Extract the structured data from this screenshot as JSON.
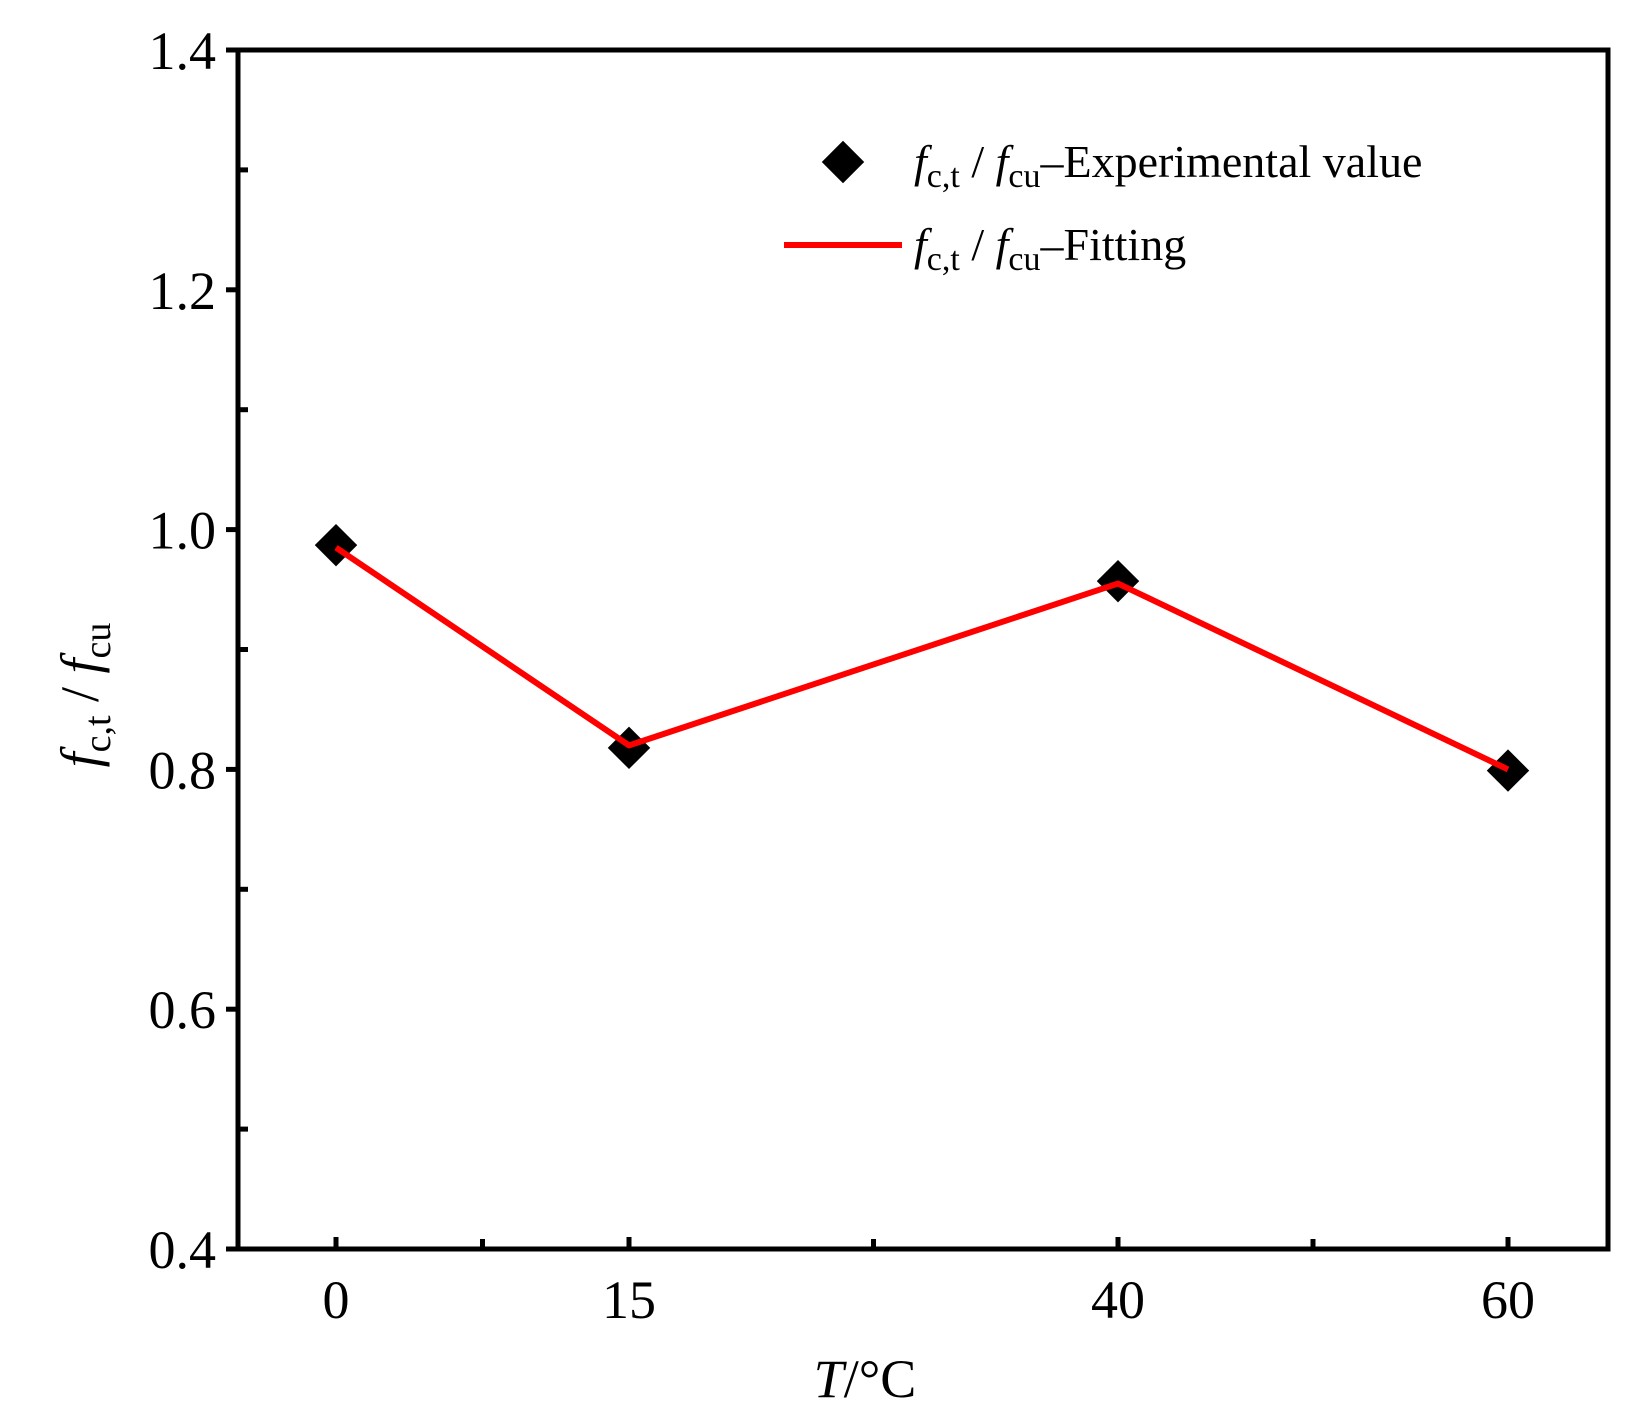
{
  "chart_data": {
    "type": "line",
    "x_categories": [
      "0",
      "15",
      "40",
      "60"
    ],
    "x": [
      0,
      15,
      40,
      60
    ],
    "ylim": [
      0.4,
      1.4
    ],
    "y_ticks": [
      "0.4",
      "0.6",
      "0.8",
      "1.0",
      "1.2",
      "1.4"
    ],
    "y_tick_values": [
      0.4,
      0.6,
      0.8,
      1.0,
      1.2,
      1.4
    ],
    "y_minor_tick_values": [
      0.5,
      0.7,
      0.9,
      1.1,
      1.3
    ],
    "x_minor_tick_positions": [
      0.5,
      1.5,
      2.5
    ],
    "xlabel": {
      "var": "T",
      "unit": "/°C"
    },
    "ylabel": {
      "f1": "f",
      "sub1": "c,t",
      "slash": " / ",
      "f2": "f",
      "sub2": "cu"
    },
    "legend_position": "top-right",
    "series": [
      {
        "name": "Experimental value",
        "kind": "scatter",
        "marker": "diamond",
        "color": "#000000",
        "values": [
          0.987,
          0.818,
          0.957,
          0.799
        ],
        "legend": {
          "f1": "f",
          "sub1": "c,t",
          "slash": " / ",
          "f2": "f",
          "sub2": "cu",
          "suffix": "–Experimental value"
        }
      },
      {
        "name": "Fitting",
        "kind": "line",
        "color": "#ff0000",
        "values": [
          0.985,
          0.82,
          0.955,
          0.8
        ],
        "legend": {
          "f1": "f",
          "sub1": "c,t",
          "slash": " / ",
          "f2": "f",
          "sub2": "cu",
          "suffix": "–Fitting"
        }
      }
    ]
  }
}
